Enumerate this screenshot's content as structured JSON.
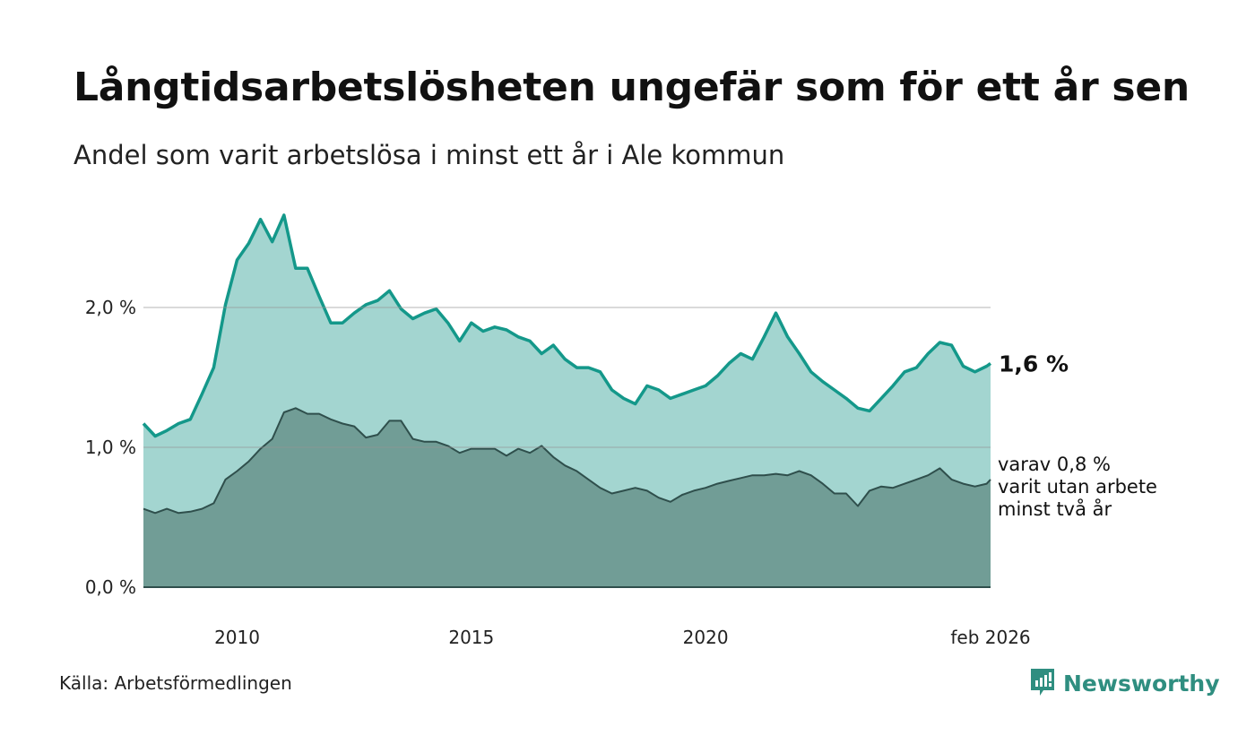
{
  "title": "Långtidsarbetslösheten ungefär som för ett år sen",
  "subtitle": "Andel som varit arbetslösa i minst ett år i Ale kommun",
  "source": "Källa: Arbetsförmedlingen",
  "logo": "Newsworthy",
  "colors": {
    "upper_fill": "#a3d5d0",
    "upper_line": "#14988a",
    "lower_fill": "#719d96",
    "lower_line": "#2f4f4c"
  },
  "chart_data": {
    "type": "area",
    "title": "Långtidsarbetslösheten ungefär som för ett år sen",
    "xlabel": "",
    "ylabel": "",
    "xlim": [
      2008.0,
      2026.083
    ],
    "ylim": [
      0,
      2.7
    ],
    "grid": true,
    "yticks": [
      {
        "value": 0,
        "label": "0,0 %"
      },
      {
        "value": 1,
        "label": "1,0 %"
      },
      {
        "value": 2,
        "label": "2,0 %"
      }
    ],
    "xticks": [
      {
        "value": 2010,
        "label": "2010"
      },
      {
        "value": 2015,
        "label": "2015"
      },
      {
        "value": 2020,
        "label": "2020"
      },
      {
        "value": 2026.083,
        "label": "feb 2026"
      }
    ],
    "series": [
      {
        "name": "Arbetslösa minst ett år",
        "end_label": "1,6 %",
        "values": [
          1.17,
          1.08,
          1.12,
          1.17,
          1.2,
          1.38,
          1.57,
          2.02,
          2.34,
          2.46,
          2.63,
          2.47,
          2.66,
          2.28,
          2.28,
          2.08,
          1.89,
          1.89,
          1.96,
          2.02,
          2.05,
          2.12,
          1.99,
          1.92,
          1.96,
          1.99,
          1.89,
          1.76,
          1.89,
          1.83,
          1.86,
          1.84,
          1.79,
          1.76,
          1.67,
          1.73,
          1.63,
          1.57,
          1.57,
          1.54,
          1.41,
          1.35,
          1.31,
          1.44,
          1.41,
          1.35,
          1.38,
          1.41,
          1.44,
          1.51,
          1.6,
          1.67,
          1.63,
          1.79,
          1.96,
          1.79,
          1.67,
          1.54,
          1.47,
          1.41,
          1.35,
          1.28,
          1.26,
          1.35,
          1.44,
          1.54,
          1.57,
          1.67,
          1.75,
          1.73,
          1.58,
          1.54,
          1.58,
          1.6
        ]
      },
      {
        "name": "varav minst två år",
        "end_label": [
          "varav 0,8 %",
          "varit utan arbete",
          "minst två år"
        ],
        "values": [
          0.56,
          0.53,
          0.56,
          0.53,
          0.54,
          0.56,
          0.6,
          0.77,
          0.83,
          0.9,
          0.99,
          1.06,
          1.25,
          1.28,
          1.24,
          1.24,
          1.2,
          1.17,
          1.15,
          1.07,
          1.09,
          1.19,
          1.19,
          1.06,
          1.04,
          1.04,
          1.01,
          0.96,
          0.99,
          0.99,
          0.99,
          0.94,
          0.99,
          0.96,
          1.01,
          0.93,
          0.87,
          0.83,
          0.77,
          0.71,
          0.67,
          0.69,
          0.71,
          0.69,
          0.64,
          0.61,
          0.66,
          0.69,
          0.71,
          0.74,
          0.76,
          0.78,
          0.8,
          0.8,
          0.81,
          0.8,
          0.83,
          0.8,
          0.74,
          0.67,
          0.67,
          0.58,
          0.69,
          0.72,
          0.71,
          0.74,
          0.77,
          0.8,
          0.85,
          0.77,
          0.74,
          0.72,
          0.74,
          0.77
        ]
      }
    ]
  }
}
